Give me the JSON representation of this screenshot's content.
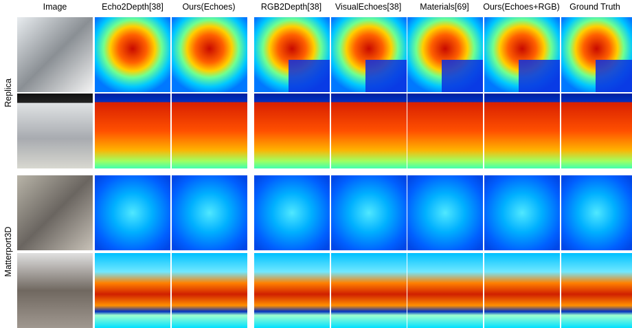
{
  "header": {
    "columns": [
      "Image",
      "Echo2Depth[38]",
      "Ours(Echoes)",
      "RGB2Depth[38]",
      "VisualEchoes[38]",
      "Materials[69]",
      "Ours(Echoes+RGB)",
      "Ground Truth"
    ]
  },
  "rows": {
    "groups": [
      "Replica",
      "Matterport3D"
    ]
  }
}
